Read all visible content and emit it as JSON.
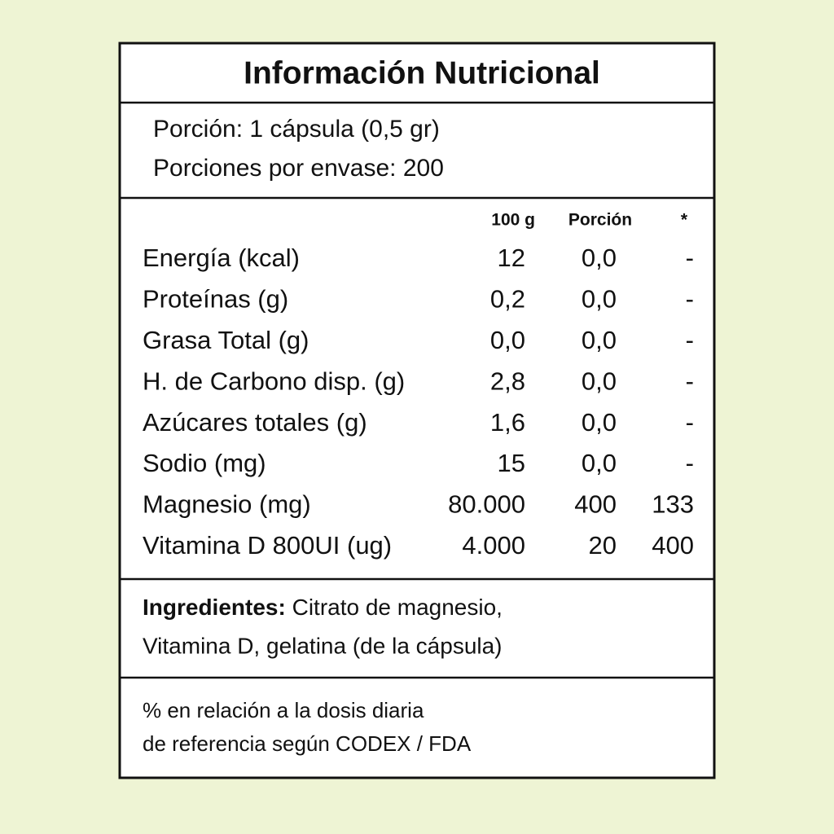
{
  "title": "Información Nutricional",
  "serving": [
    "Porción: 1 cápsula (0,5 gr)",
    "Porciones por envase: 200"
  ],
  "table": {
    "headers": [
      "100 g",
      "Porción",
      "*"
    ],
    "rows": [
      [
        "Energía (kcal)",
        "12",
        "0,0",
        "-"
      ],
      [
        "Proteínas (g)",
        "0,2",
        "0,0",
        "-"
      ],
      [
        "Grasa Total (g)",
        "0,0",
        "0,0",
        "-"
      ],
      [
        "H. de Carbono disp. (g)",
        "2,8",
        "0,0",
        "-"
      ],
      [
        "Azúcares totales (g)",
        "1,6",
        "0,0",
        "-"
      ],
      [
        "Sodio (mg)",
        "15",
        "0,0",
        "-"
      ],
      [
        "Magnesio (mg)",
        "80.000",
        "400",
        "133"
      ],
      [
        "Vitamina D 800UI (ug)",
        "4.000",
        "20",
        "400"
      ]
    ]
  },
  "ingredients": {
    "label": "Ingredientes:",
    "lines": [
      "Citrato de magnesio,",
      "Vitamina D, gelatina (de la cápsula)"
    ]
  },
  "footnote": [
    "% en relación a la dosis diaria",
    "de referencia según CODEX / FDA"
  ]
}
